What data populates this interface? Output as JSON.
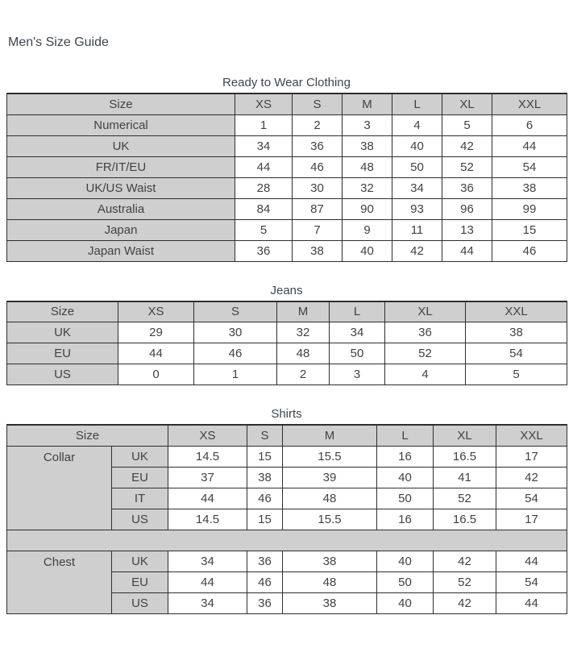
{
  "page": {
    "title": "Men's Size Guide"
  },
  "colors": {
    "header_bg": "#cfcfcf",
    "border": "#2e2e2e",
    "cell_text": "#424242",
    "heading_text": "#3d464f",
    "page_bg": "#ffffff"
  },
  "simple_tables": [
    {
      "caption": "Ready to Wear Clothing",
      "header": [
        "Size",
        "XS",
        "S",
        "M",
        "L",
        "XL",
        "XXL"
      ],
      "rows": [
        {
          "label": "Numerical",
          "values": [
            "1",
            "2",
            "3",
            "4",
            "5",
            "6"
          ]
        },
        {
          "label": "UK",
          "values": [
            "34",
            "36",
            "38",
            "40",
            "42",
            "44"
          ]
        },
        {
          "label": "FR/IT/EU",
          "values": [
            "44",
            "46",
            "48",
            "50",
            "52",
            "54"
          ]
        },
        {
          "label": "UK/US Waist",
          "values": [
            "28",
            "30",
            "32",
            "34",
            "36",
            "38"
          ]
        },
        {
          "label": "Australia",
          "values": [
            "84",
            "87",
            "90",
            "93",
            "96",
            "99"
          ]
        },
        {
          "label": "Japan",
          "values": [
            "5",
            "7",
            "9",
            "11",
            "13",
            "15"
          ]
        },
        {
          "label": "Japan Waist",
          "values": [
            "36",
            "38",
            "40",
            "42",
            "44",
            "46"
          ]
        }
      ]
    },
    {
      "caption": "Jeans",
      "header": [
        "Size",
        "XS",
        "S",
        "M",
        "L",
        "XL",
        "XXL"
      ],
      "rows": [
        {
          "label": "UK",
          "values": [
            "29",
            "30",
            "32",
            "34",
            "36",
            "38"
          ]
        },
        {
          "label": "EU",
          "values": [
            "44",
            "46",
            "48",
            "50",
            "52",
            "54"
          ]
        },
        {
          "label": "US",
          "values": [
            "0",
            "1",
            "2",
            "3",
            "4",
            "5"
          ]
        }
      ]
    }
  ],
  "shirts_table": {
    "caption": "Shirts",
    "header": {
      "size_label": "Size",
      "sizes": [
        "XS",
        "S",
        "M",
        "L",
        "XL",
        "XXL"
      ]
    },
    "groups": [
      {
        "label": "Collar",
        "rows": [
          {
            "region": "UK",
            "values": [
              "14.5",
              "15",
              "15.5",
              "16",
              "16.5",
              "17"
            ]
          },
          {
            "region": "EU",
            "values": [
              "37",
              "38",
              "39",
              "40",
              "41",
              "42"
            ]
          },
          {
            "region": "IT",
            "values": [
              "44",
              "46",
              "48",
              "50",
              "52",
              "54"
            ]
          },
          {
            "region": "US",
            "values": [
              "14.5",
              "15",
              "15.5",
              "16",
              "16.5",
              "17"
            ]
          }
        ]
      },
      {
        "label": "Chest",
        "rows": [
          {
            "region": "UK",
            "values": [
              "34",
              "36",
              "38",
              "40",
              "42",
              "44"
            ]
          },
          {
            "region": "EU",
            "values": [
              "44",
              "46",
              "48",
              "50",
              "52",
              "54"
            ]
          },
          {
            "region": "US",
            "values": [
              "34",
              "36",
              "38",
              "40",
              "42",
              "44"
            ]
          }
        ]
      }
    ],
    "separator_between_groups": true
  }
}
